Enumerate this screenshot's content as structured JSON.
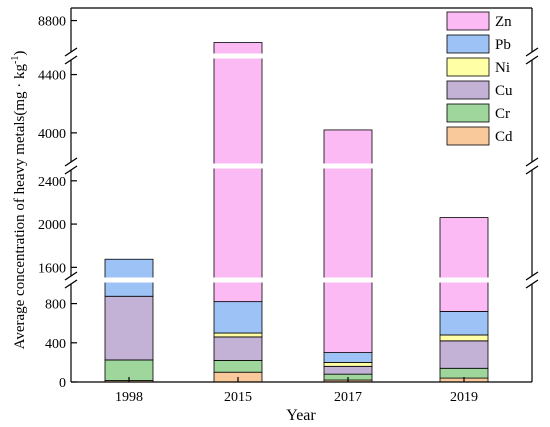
{
  "chart_data": {
    "type": "bar",
    "stacked": true,
    "broken_y_axis": true,
    "categories": [
      "1998",
      "2015",
      "2017",
      "2019"
    ],
    "xlabel": "Year",
    "ylabel": "Average concentration of heavy metals(mg · kg",
    "ylabel_sup": "-1",
    "ylabel_close": ")",
    "segments": [
      {
        "range": [
          0,
          1000
        ],
        "ticks": [
          0,
          400,
          800
        ],
        "tick_labels": [
          "0",
          "400",
          "800"
        ]
      },
      {
        "range": [
          1520,
          2500
        ],
        "ticks": [
          1600,
          2000,
          2400
        ],
        "tick_labels": [
          "1600",
          "2000",
          "2400"
        ]
      },
      {
        "range": [
          3800,
          4500
        ],
        "ticks": [
          4000,
          4400
        ],
        "tick_labels": [
          "4000",
          "4400"
        ]
      },
      {
        "range": [
          8700,
          8840
        ],
        "ticks": [
          8800
        ],
        "tick_labels": [
          "8800"
        ]
      }
    ],
    "series": [
      {
        "name": "Cd",
        "color": "#f9c89b",
        "values": [
          15,
          100,
          20,
          40
        ]
      },
      {
        "name": "Cr",
        "color": "#9ed69c",
        "values": [
          210,
          120,
          60,
          100
        ]
      },
      {
        "name": "Cu",
        "color": "#c3b1d6",
        "values": [
          650,
          240,
          80,
          280
        ]
      },
      {
        "name": "Ni",
        "color": "#ffffa6",
        "values": [
          0,
          40,
          40,
          60
        ]
      },
      {
        "name": "Pb",
        "color": "#9dc2f5",
        "values": [
          800,
          320,
          100,
          240
        ]
      },
      {
        "name": "Zn",
        "color": "#fcbaf5",
        "values": [
          0,
          7910,
          3720,
          1340
        ]
      }
    ],
    "legend_position": "top-right",
    "grid": false
  }
}
